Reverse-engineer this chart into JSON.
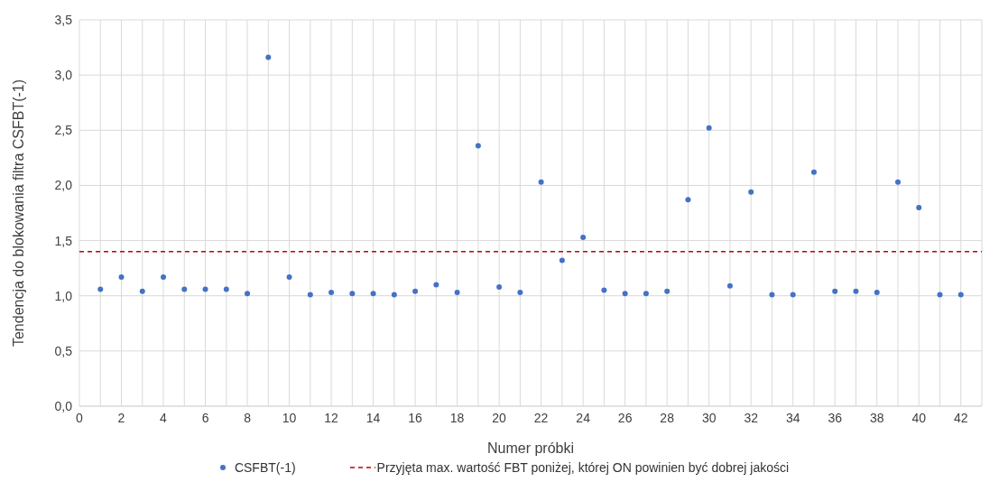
{
  "chart_data": {
    "type": "scatter",
    "xlabel": "Numer próbki",
    "ylabel": "Tendencja do blokowania filtra CSFBT(-1)",
    "x": [
      1,
      2,
      3,
      4,
      5,
      6,
      7,
      8,
      9,
      10,
      11,
      12,
      13,
      14,
      15,
      16,
      17,
      18,
      19,
      20,
      21,
      22,
      23,
      24,
      25,
      26,
      27,
      28,
      29,
      30,
      31,
      32,
      33,
      34,
      35,
      36,
      37,
      38,
      39,
      40,
      41,
      42
    ],
    "series": [
      {
        "name": "CSFBT(-1)",
        "color": "#4472c4",
        "values": [
          1.06,
          1.17,
          1.04,
          1.17,
          1.06,
          1.06,
          1.06,
          1.02,
          3.16,
          1.17,
          1.01,
          1.03,
          1.02,
          1.02,
          1.01,
          1.04,
          1.1,
          1.03,
          2.36,
          1.08,
          1.03,
          2.03,
          1.32,
          1.53,
          1.05,
          1.02,
          1.02,
          1.04,
          1.87,
          2.52,
          1.09,
          1.94,
          1.01,
          1.01,
          2.12,
          1.04,
          1.04,
          1.03,
          2.03,
          1.8,
          1.01,
          1.01
        ]
      }
    ],
    "ref_lines": [
      {
        "axis": "y",
        "value": 1.4,
        "label": "Przyjęta max. wartość FBT poniżej, której ON powinien być dobrej jakości",
        "color": "#c00000",
        "line_style": "dashed"
      }
    ],
    "xlim": [
      0,
      43
    ],
    "xticks": [
      0,
      {
        "value": 1,
        "label": null
      },
      2,
      {
        "value": 3,
        "label": null
      },
      4,
      {
        "value": 5,
        "label": null
      },
      6,
      {
        "value": 7,
        "label": null
      },
      8,
      {
        "value": 9,
        "label": null
      },
      10,
      {
        "value": 11,
        "label": null
      },
      12,
      {
        "value": 13,
        "label": null
      },
      14,
      {
        "value": 15,
        "label": null
      },
      16,
      {
        "value": 17,
        "label": null
      },
      18,
      {
        "value": 19,
        "label": null
      },
      20,
      {
        "value": 21,
        "label": null
      },
      22,
      {
        "value": 23,
        "label": null
      },
      24,
      {
        "value": 25,
        "label": null
      },
      26,
      {
        "value": 27,
        "label": null
      },
      28,
      {
        "value": 29,
        "label": null
      },
      30,
      {
        "value": 31,
        "label": null
      },
      32,
      {
        "value": 33,
        "label": null
      },
      34,
      {
        "value": 35,
        "label": null
      },
      36,
      {
        "value": 37,
        "label": null
      },
      38,
      {
        "value": 39,
        "label": null
      },
      40,
      {
        "value": 41,
        "label": null
      },
      42,
      {
        "value": 43,
        "label": null
      }
    ],
    "ylim": [
      0,
      3.5
    ],
    "yticks": [
      {
        "value": 0,
        "label": "0,0"
      },
      {
        "value": 0.5,
        "label": "0,5"
      },
      {
        "value": 1,
        "label": "1,0"
      },
      {
        "value": 1.5,
        "label": "1,5"
      },
      {
        "value": 2,
        "label": "2,0"
      },
      {
        "value": 2.5,
        "label": "2,5"
      },
      {
        "value": 3,
        "label": "3,0"
      },
      {
        "value": 3.5,
        "label": "3,5"
      }
    ],
    "grid": true,
    "legend": "bottom",
    "marker": "circle"
  }
}
